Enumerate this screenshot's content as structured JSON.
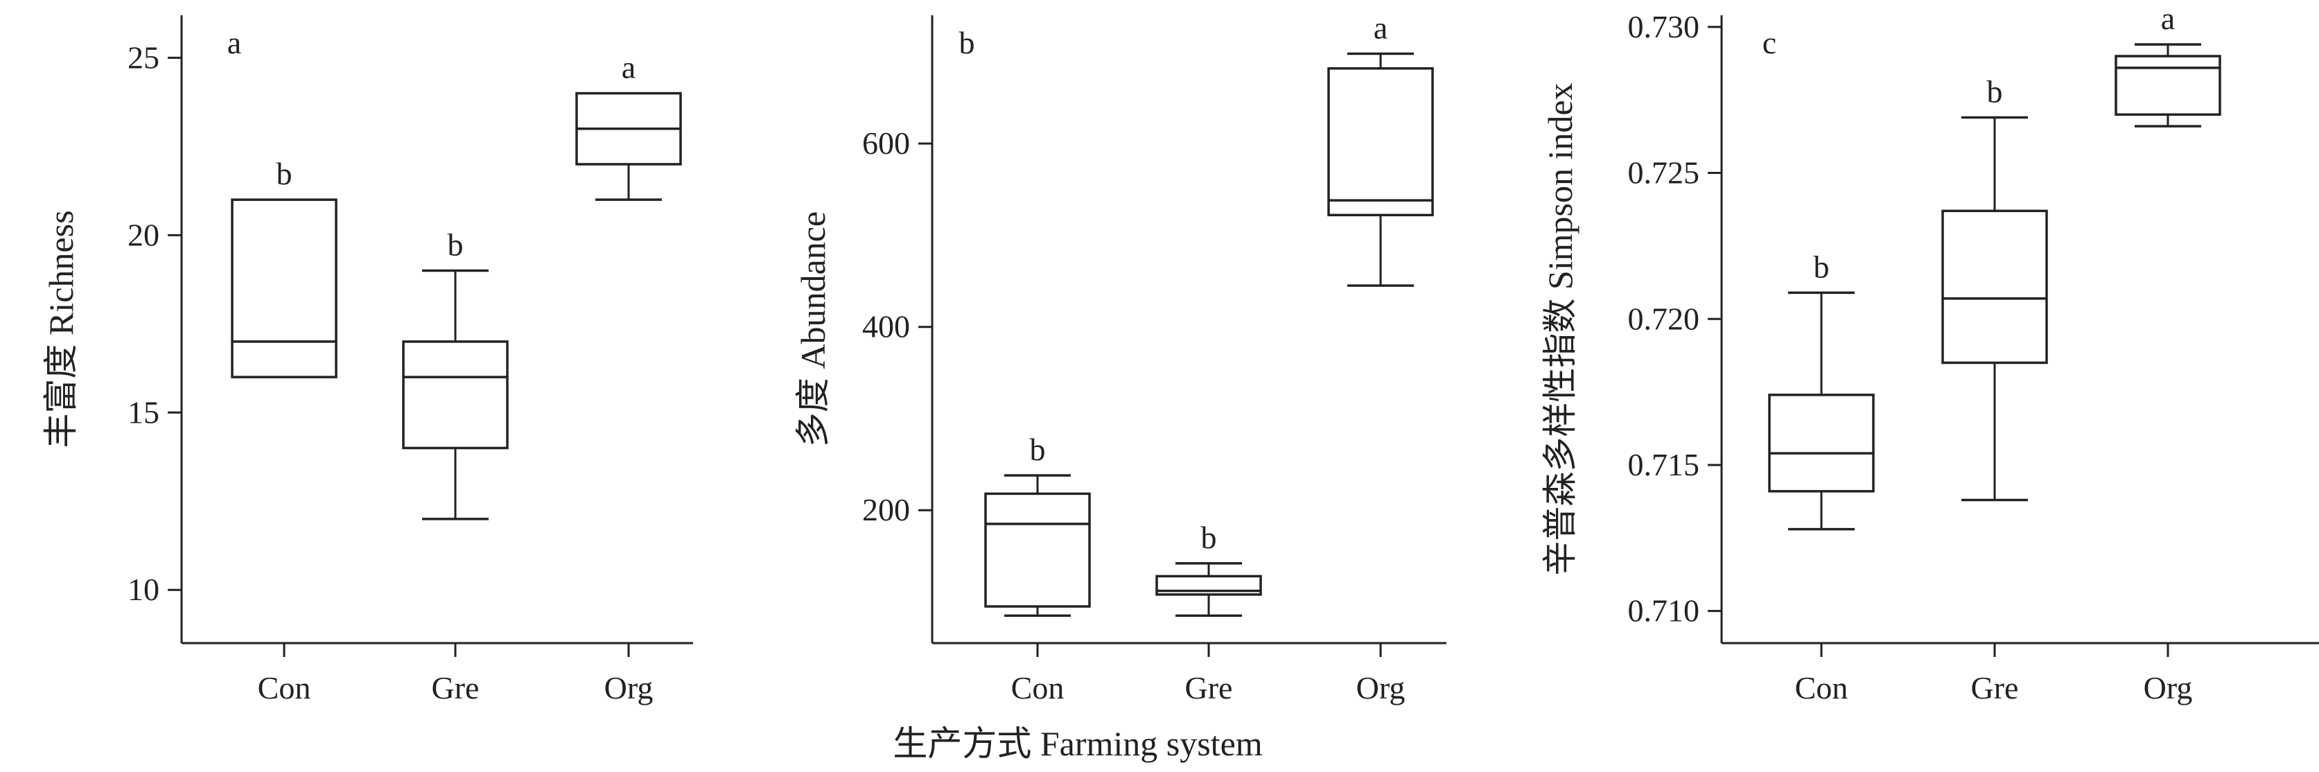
{
  "chart_data": [
    {
      "type": "box",
      "panel_label": "a",
      "ylabel": "丰富度 Richness",
      "ylim": [
        8.5,
        26.2
      ],
      "yticks": [
        10,
        15,
        20,
        25
      ],
      "categories": [
        "Con",
        "Gre",
        "Org"
      ],
      "boxes": [
        {
          "category": "Con",
          "min": 16,
          "q1": 16,
          "median": 17,
          "q3": 21,
          "max": 21,
          "sig": "b"
        },
        {
          "category": "Gre",
          "min": 12,
          "q1": 14,
          "median": 16,
          "q3": 17,
          "max": 19,
          "sig": "b"
        },
        {
          "category": "Org",
          "min": 21,
          "q1": 22,
          "median": 23,
          "q3": 24,
          "max": 24,
          "sig": "a"
        }
      ]
    },
    {
      "type": "box",
      "panel_label": "b",
      "ylabel": "多度 Abundance",
      "ylim": [
        55,
        740
      ],
      "yticks": [
        200,
        400,
        600
      ],
      "categories": [
        "Con",
        "Gre",
        "Org"
      ],
      "boxes": [
        {
          "category": "Con",
          "min": 85,
          "q1": 95,
          "median": 185,
          "q3": 218,
          "max": 238,
          "sig": "b"
        },
        {
          "category": "Gre",
          "min": 85,
          "q1": 108,
          "median": 112,
          "q3": 128,
          "max": 142,
          "sig": "b"
        },
        {
          "category": "Org",
          "min": 445,
          "q1": 522,
          "median": 538,
          "q3": 682,
          "max": 698,
          "sig": "a"
        }
      ]
    },
    {
      "type": "box",
      "panel_label": "c",
      "ylabel": "辛普森多样性指数 Simpson index",
      "ylim": [
        0.7089,
        0.7304
      ],
      "yticks": [
        0.71,
        0.715,
        0.72,
        0.725,
        0.73
      ],
      "ytick_labels": [
        "0.710",
        "0.715",
        "0.720",
        "0.725",
        "0.730"
      ],
      "categories": [
        "Con",
        "Gre",
        "Org"
      ],
      "boxes": [
        {
          "category": "Con",
          "min": 0.7128,
          "q1": 0.7141,
          "median": 0.7154,
          "q3": 0.7174,
          "max": 0.7209,
          "sig": "b"
        },
        {
          "category": "Gre",
          "min": 0.7138,
          "q1": 0.7185,
          "median": 0.7207,
          "q3": 0.7237,
          "max": 0.7269,
          "sig": "b"
        },
        {
          "category": "Org",
          "min": 0.7266,
          "q1": 0.727,
          "median": 0.7286,
          "q3": 0.729,
          "max": 0.7294,
          "sig": "a"
        }
      ]
    }
  ],
  "xlabel": "生产方式 Farming system"
}
